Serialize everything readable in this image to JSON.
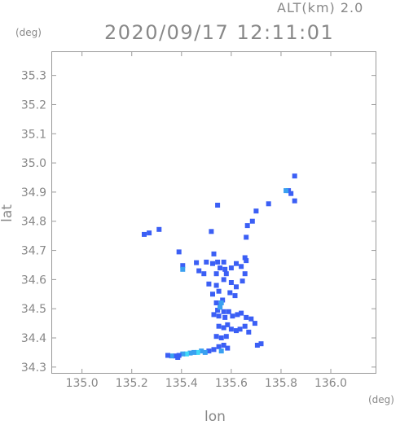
{
  "header": {
    "altitude": "ALT(km) 2.0",
    "timestamp": "2020/09/17 12:11:01"
  },
  "chart_data": {
    "type": "scatter",
    "title": "2020/09/17 12:11:01",
    "subtitle": "ALT(km) 2.0",
    "xlabel": "lon",
    "ylabel": "lat",
    "x_unit": "(deg)",
    "y_unit": "(deg)",
    "xlim": [
      134.88,
      136.18
    ],
    "ylim": [
      34.28,
      35.38
    ],
    "grid": false,
    "x_ticks": [
      "135.0",
      "135.2",
      "135.4",
      "135.6",
      "135.8",
      "136.0"
    ],
    "y_ticks": [
      "35.3",
      "35.2",
      "35.1",
      "35.0",
      "34.9",
      "34.8",
      "34.7",
      "34.6",
      "34.5",
      "34.4",
      "34.3"
    ],
    "colors": {
      "low": "#3b5ff5",
      "mid": "#3aa0f0",
      "high": "#40d8f8",
      "axis": "#999999"
    },
    "echoes": [
      {
        "x": 135.83,
        "y": 34.905,
        "level": "low"
      },
      {
        "x": 135.84,
        "y": 34.895,
        "level": "low"
      },
      {
        "x": 135.855,
        "y": 34.955,
        "level": "low"
      },
      {
        "x": 135.855,
        "y": 34.87,
        "level": "low"
      },
      {
        "x": 135.82,
        "y": 34.905,
        "level": "mid"
      },
      {
        "x": 135.75,
        "y": 34.86,
        "level": "low"
      },
      {
        "x": 135.7,
        "y": 34.835,
        "level": "low"
      },
      {
        "x": 135.685,
        "y": 34.8,
        "level": "low"
      },
      {
        "x": 135.665,
        "y": 34.785,
        "level": "low"
      },
      {
        "x": 135.66,
        "y": 34.745,
        "level": "low"
      },
      {
        "x": 135.25,
        "y": 34.755,
        "level": "low"
      },
      {
        "x": 135.27,
        "y": 34.76,
        "level": "low"
      },
      {
        "x": 135.31,
        "y": 34.772,
        "level": "low"
      },
      {
        "x": 135.545,
        "y": 34.855,
        "level": "low"
      },
      {
        "x": 135.52,
        "y": 34.765,
        "level": "low"
      },
      {
        "x": 135.39,
        "y": 34.695,
        "level": "low"
      },
      {
        "x": 135.405,
        "y": 34.648,
        "level": "low"
      },
      {
        "x": 135.405,
        "y": 34.635,
        "level": "mid"
      },
      {
        "x": 135.46,
        "y": 34.658,
        "level": "low"
      },
      {
        "x": 135.5,
        "y": 34.66,
        "level": "low"
      },
      {
        "x": 135.525,
        "y": 34.655,
        "level": "low"
      },
      {
        "x": 135.53,
        "y": 34.688,
        "level": "low"
      },
      {
        "x": 135.545,
        "y": 34.66,
        "level": "low"
      },
      {
        "x": 135.555,
        "y": 34.64,
        "level": "low"
      },
      {
        "x": 135.575,
        "y": 34.635,
        "level": "low"
      },
      {
        "x": 135.6,
        "y": 34.64,
        "level": "low"
      },
      {
        "x": 135.62,
        "y": 34.655,
        "level": "low"
      },
      {
        "x": 135.64,
        "y": 34.645,
        "level": "low"
      },
      {
        "x": 135.655,
        "y": 34.675,
        "level": "low"
      },
      {
        "x": 135.66,
        "y": 34.665,
        "level": "low"
      },
      {
        "x": 135.655,
        "y": 34.62,
        "level": "low"
      },
      {
        "x": 135.57,
        "y": 34.6,
        "level": "low"
      },
      {
        "x": 135.6,
        "y": 34.59,
        "level": "low"
      },
      {
        "x": 135.62,
        "y": 34.575,
        "level": "low"
      },
      {
        "x": 135.645,
        "y": 34.595,
        "level": "low"
      },
      {
        "x": 135.54,
        "y": 34.58,
        "level": "low"
      },
      {
        "x": 135.55,
        "y": 34.56,
        "level": "low"
      },
      {
        "x": 135.525,
        "y": 34.55,
        "level": "low"
      },
      {
        "x": 135.595,
        "y": 34.555,
        "level": "low"
      },
      {
        "x": 135.615,
        "y": 34.545,
        "level": "low"
      },
      {
        "x": 135.54,
        "y": 34.52,
        "level": "low"
      },
      {
        "x": 135.555,
        "y": 34.51,
        "level": "low"
      },
      {
        "x": 135.565,
        "y": 34.53,
        "level": "low"
      },
      {
        "x": 135.545,
        "y": 34.495,
        "level": "low"
      },
      {
        "x": 135.57,
        "y": 34.49,
        "level": "low"
      },
      {
        "x": 135.555,
        "y": 34.505,
        "level": "mid"
      },
      {
        "x": 135.56,
        "y": 34.52,
        "level": "mid"
      },
      {
        "x": 135.55,
        "y": 34.475,
        "level": "low"
      },
      {
        "x": 135.575,
        "y": 34.47,
        "level": "low"
      },
      {
        "x": 135.53,
        "y": 34.48,
        "level": "low"
      },
      {
        "x": 135.59,
        "y": 34.49,
        "level": "low"
      },
      {
        "x": 135.605,
        "y": 34.475,
        "level": "low"
      },
      {
        "x": 135.625,
        "y": 34.48,
        "level": "low"
      },
      {
        "x": 135.64,
        "y": 34.485,
        "level": "low"
      },
      {
        "x": 135.66,
        "y": 34.47,
        "level": "low"
      },
      {
        "x": 135.68,
        "y": 34.465,
        "level": "low"
      },
      {
        "x": 135.695,
        "y": 34.45,
        "level": "low"
      },
      {
        "x": 135.55,
        "y": 34.44,
        "level": "low"
      },
      {
        "x": 135.57,
        "y": 34.435,
        "level": "low"
      },
      {
        "x": 135.585,
        "y": 34.445,
        "level": "low"
      },
      {
        "x": 135.6,
        "y": 34.43,
        "level": "low"
      },
      {
        "x": 135.62,
        "y": 34.425,
        "level": "low"
      },
      {
        "x": 135.635,
        "y": 34.43,
        "level": "low"
      },
      {
        "x": 135.655,
        "y": 34.44,
        "level": "low"
      },
      {
        "x": 135.67,
        "y": 34.42,
        "level": "low"
      },
      {
        "x": 135.54,
        "y": 34.405,
        "level": "low"
      },
      {
        "x": 135.56,
        "y": 34.4,
        "level": "low"
      },
      {
        "x": 135.58,
        "y": 34.405,
        "level": "low"
      },
      {
        "x": 135.55,
        "y": 34.37,
        "level": "low"
      },
      {
        "x": 135.57,
        "y": 34.375,
        "level": "low"
      },
      {
        "x": 135.585,
        "y": 34.365,
        "level": "low"
      },
      {
        "x": 135.56,
        "y": 34.355,
        "level": "mid"
      },
      {
        "x": 135.53,
        "y": 34.36,
        "level": "low"
      },
      {
        "x": 135.51,
        "y": 34.355,
        "level": "low"
      },
      {
        "x": 135.495,
        "y": 34.35,
        "level": "mid"
      },
      {
        "x": 135.48,
        "y": 34.355,
        "level": "mid"
      },
      {
        "x": 135.465,
        "y": 34.35,
        "level": "high"
      },
      {
        "x": 135.45,
        "y": 34.35,
        "level": "mid"
      },
      {
        "x": 135.435,
        "y": 34.348,
        "level": "mid"
      },
      {
        "x": 135.42,
        "y": 34.345,
        "level": "high"
      },
      {
        "x": 135.405,
        "y": 34.345,
        "level": "mid"
      },
      {
        "x": 135.39,
        "y": 34.34,
        "level": "low"
      },
      {
        "x": 135.375,
        "y": 34.338,
        "level": "low"
      },
      {
        "x": 135.36,
        "y": 34.338,
        "level": "mid"
      },
      {
        "x": 135.345,
        "y": 34.34,
        "level": "low"
      },
      {
        "x": 135.385,
        "y": 34.333,
        "level": "low"
      },
      {
        "x": 135.705,
        "y": 34.375,
        "level": "low"
      },
      {
        "x": 135.72,
        "y": 34.38,
        "level": "low"
      },
      {
        "x": 135.51,
        "y": 34.585,
        "level": "low"
      },
      {
        "x": 135.49,
        "y": 34.62,
        "level": "low"
      },
      {
        "x": 135.47,
        "y": 34.63,
        "level": "low"
      },
      {
        "x": 135.58,
        "y": 34.62,
        "level": "low"
      },
      {
        "x": 135.54,
        "y": 34.62,
        "level": "low"
      },
      {
        "x": 135.57,
        "y": 34.66,
        "level": "low"
      }
    ]
  }
}
